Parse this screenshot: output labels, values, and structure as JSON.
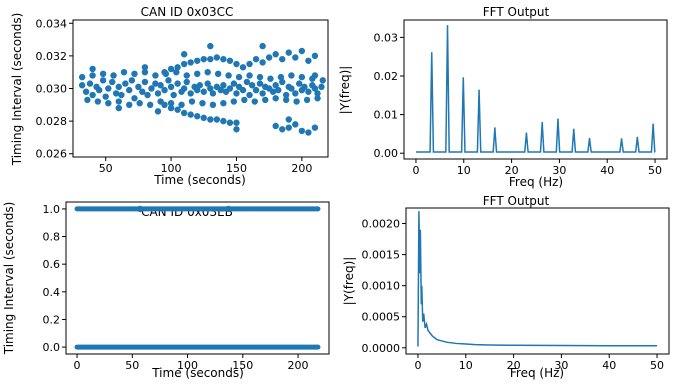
{
  "colors": {
    "series": "#1f77b4",
    "axes": "#000000",
    "background": "#ffffff"
  },
  "chart_data": [
    {
      "type": "scatter",
      "title": "CAN ID 0x03CC",
      "xlabel": "Time (seconds)",
      "ylabel": "Timing Interval (seconds)",
      "xlim": [
        25,
        220
      ],
      "ylim": [
        0.0258,
        0.0342
      ],
      "xticks": [
        50,
        100,
        150,
        200
      ],
      "xtick_labels": [
        "50",
        "100",
        "150",
        "200"
      ],
      "yticks": [
        0.026,
        0.028,
        0.03,
        0.032,
        0.034
      ],
      "ytick_labels": [
        "0.026",
        "0.028",
        "0.030",
        "0.032",
        "0.034"
      ],
      "grid": false,
      "x": [
        32,
        35,
        38,
        40,
        43,
        45,
        48,
        50,
        52,
        55,
        58,
        60,
        62,
        65,
        68,
        70,
        72,
        75,
        78,
        80,
        82,
        85,
        88,
        90,
        92,
        95,
        98,
        100,
        102,
        105,
        108,
        110,
        112,
        115,
        118,
        120,
        122,
        125,
        128,
        130,
        132,
        135,
        138,
        140,
        142,
        145,
        148,
        150,
        152,
        155,
        158,
        160,
        162,
        165,
        168,
        170,
        172,
        175,
        178,
        180,
        182,
        185,
        188,
        190,
        192,
        195,
        198,
        200,
        202,
        205,
        208,
        210,
        212,
        215,
        32,
        36,
        40,
        44,
        48,
        52,
        56,
        60,
        64,
        68,
        72,
        76,
        80,
        84,
        88,
        92,
        96,
        100,
        104,
        108,
        112,
        116,
        120,
        124,
        128,
        132,
        136,
        140,
        144,
        148,
        152,
        156,
        160,
        164,
        168,
        172,
        176,
        180,
        184,
        188,
        192,
        196,
        200,
        204,
        208,
        212,
        216,
        95,
        100,
        105,
        110,
        115,
        120,
        125,
        130,
        135,
        140,
        145,
        150,
        95,
        100,
        105,
        110,
        115,
        120,
        125,
        130,
        135,
        140,
        145,
        150,
        155,
        160,
        165,
        170,
        175,
        180,
        185,
        190,
        195,
        200,
        205,
        210,
        180,
        185,
        190,
        195,
        200,
        205,
        210,
        40,
        60,
        80,
        90,
        110,
        130,
        150,
        170,
        190,
        210
      ],
      "y": [
        0.0302,
        0.0298,
        0.0303,
        0.0296,
        0.0301,
        0.0299,
        0.0305,
        0.0295,
        0.03,
        0.0304,
        0.0297,
        0.0301,
        0.0296,
        0.0303,
        0.0299,
        0.0305,
        0.0294,
        0.0301,
        0.0298,
        0.0304,
        0.0296,
        0.03,
        0.0303,
        0.0297,
        0.0302,
        0.0299,
        0.0305,
        0.0301,
        0.0296,
        0.0303,
        0.0298,
        0.03,
        0.0304,
        0.0297,
        0.0301,
        0.0299,
        0.0302,
        0.0298,
        0.0303,
        0.03,
        0.0297,
        0.0301,
        0.0299,
        0.0302,
        0.0298,
        0.03,
        0.0303,
        0.0297,
        0.0301,
        0.0299,
        0.0304,
        0.0296,
        0.0302,
        0.0299,
        0.0303,
        0.0297,
        0.0301,
        0.03,
        0.0298,
        0.0302,
        0.0299,
        0.0304,
        0.0296,
        0.0301,
        0.03,
        0.0297,
        0.0303,
        0.0299,
        0.0301,
        0.0298,
        0.0302,
        0.03,
        0.0297,
        0.0301,
        0.0307,
        0.0293,
        0.0308,
        0.0292,
        0.0309,
        0.0291,
        0.0308,
        0.0292,
        0.031,
        0.029,
        0.0309,
        0.0291,
        0.031,
        0.029,
        0.0308,
        0.0292,
        0.0309,
        0.0291,
        0.031,
        0.029,
        0.0308,
        0.0292,
        0.0309,
        0.0291,
        0.031,
        0.029,
        0.0309,
        0.0291,
        0.0308,
        0.0292,
        0.0307,
        0.0293,
        0.0308,
        0.0292,
        0.0307,
        0.0293,
        0.0306,
        0.0294,
        0.0307,
        0.0293,
        0.0308,
        0.0292,
        0.0307,
        0.0293,
        0.0306,
        0.0294,
        0.0305,
        0.031,
        0.0312,
        0.0313,
        0.0315,
        0.0316,
        0.0317,
        0.0318,
        0.0318,
        0.0319,
        0.0318,
        0.0317,
        0.0315,
        0.029,
        0.0288,
        0.0287,
        0.0285,
        0.0284,
        0.0283,
        0.0282,
        0.0281,
        0.0281,
        0.028,
        0.0279,
        0.0279,
        0.0313,
        0.0315,
        0.0318,
        0.0316,
        0.0319,
        0.0321,
        0.0318,
        0.0322,
        0.0319,
        0.0323,
        0.0317,
        0.032,
        0.0277,
        0.0275,
        0.0276,
        0.0278,
        0.0274,
        0.0273,
        0.0276,
        0.0312,
        0.0288,
        0.0313,
        0.0286,
        0.0321,
        0.0326,
        0.0275,
        0.0326,
        0.0281,
        0.0308
      ]
    },
    {
      "type": "line",
      "title": "FFT Output",
      "xlabel": "Freq (Hz)",
      "ylabel": "|Y(freq)|",
      "xlim": [
        -2.5,
        52.5
      ],
      "ylim": [
        -0.0015,
        0.0345
      ],
      "xticks": [
        0,
        10,
        20,
        30,
        40,
        50
      ],
      "xtick_labels": [
        "0",
        "10",
        "20",
        "30",
        "40",
        "50"
      ],
      "yticks": [
        0.0,
        0.01,
        0.02,
        0.03
      ],
      "ytick_labels": [
        "0.00",
        "0.01",
        "0.02",
        "0.03"
      ],
      "grid": false,
      "baseline": 0.0003,
      "peaks": [
        {
          "x": 3.3,
          "y": 0.026
        },
        {
          "x": 6.6,
          "y": 0.033
        },
        {
          "x": 9.9,
          "y": 0.0195
        },
        {
          "x": 13.2,
          "y": 0.0163
        },
        {
          "x": 16.5,
          "y": 0.0065
        },
        {
          "x": 23.1,
          "y": 0.0052
        },
        {
          "x": 26.4,
          "y": 0.0079
        },
        {
          "x": 29.7,
          "y": 0.0088
        },
        {
          "x": 33.0,
          "y": 0.0062
        },
        {
          "x": 36.3,
          "y": 0.0038
        },
        {
          "x": 43.0,
          "y": 0.0037
        },
        {
          "x": 46.3,
          "y": 0.0041
        },
        {
          "x": 49.6,
          "y": 0.0075
        }
      ]
    },
    {
      "type": "scatter",
      "title": "CAN ID 0x03EB",
      "xlabel": "Time (seconds)",
      "ylabel": "Timing Interval (seconds)",
      "xlim": [
        -10,
        228
      ],
      "ylim": [
        -0.05,
        1.05
      ],
      "xticks": [
        0,
        50,
        100,
        150,
        200
      ],
      "xtick_labels": [
        "0",
        "50",
        "100",
        "150",
        "200"
      ],
      "yticks": [
        0.0,
        0.2,
        0.4,
        0.6,
        0.8,
        1.0
      ],
      "ytick_labels": [
        "0.0",
        "0.2",
        "0.4",
        "0.6",
        "0.8",
        "1.0"
      ],
      "grid": false,
      "series": [
        {
          "y": 1.0,
          "x_start": 0,
          "x_end": 218
        },
        {
          "y": 0.0,
          "x_start": 0,
          "x_end": 218
        }
      ],
      "highlights": [
        {
          "x": 57,
          "y": 1.0
        },
        {
          "x": 137,
          "y": 1.0
        }
      ]
    },
    {
      "type": "line",
      "title": "FFT Output",
      "xlabel": "Freq (Hz)",
      "ylabel": "|Y(freq)|",
      "xlim": [
        -2.5,
        52.5
      ],
      "ylim": [
        -0.0001,
        0.00225
      ],
      "xticks": [
        0,
        10,
        20,
        30,
        40,
        50
      ],
      "xtick_labels": [
        "0",
        "10",
        "20",
        "30",
        "40",
        "50"
      ],
      "yticks": [
        0.0,
        0.0005,
        0.001,
        0.0015,
        0.002
      ],
      "ytick_labels": [
        "0.0000",
        "0.0005",
        "0.0010",
        "0.0015",
        "0.0020"
      ],
      "grid": false,
      "x": [
        0.0,
        0.2,
        0.4,
        0.5,
        0.7,
        0.8,
        1.0,
        1.2,
        1.5,
        1.8,
        2.1,
        2.5,
        3,
        3.5,
        4,
        5,
        6,
        7,
        8,
        10,
        12,
        15,
        20,
        25,
        30,
        35,
        40,
        45,
        50
      ],
      "y": [
        2e-05,
        0.0022,
        0.0012,
        0.0019,
        0.0007,
        0.001,
        0.00042,
        0.00055,
        0.00032,
        0.00038,
        0.00028,
        0.00024,
        0.00019,
        0.00016,
        0.00013,
        0.00011,
        9e-05,
        8e-05,
        7e-05,
        6e-05,
        5e-05,
        4.5e-05,
        4e-05,
        3.8e-05,
        3.6e-05,
        3.4e-05,
        3.3e-05,
        3.2e-05,
        3.2e-05
      ]
    }
  ]
}
